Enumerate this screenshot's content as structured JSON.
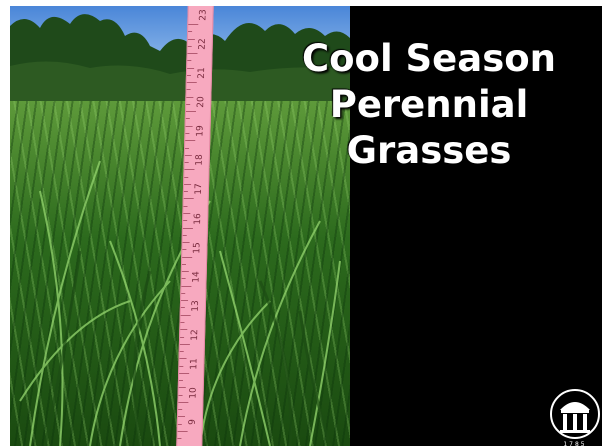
{
  "slide": {
    "title_lines": [
      "Cool Season",
      "Perennial",
      "Grasses"
    ],
    "background_color": "#000000",
    "title_color": "#ffffff"
  },
  "photo": {
    "ruler_numbers": [
      "9",
      "10",
      "11",
      "12",
      "13",
      "14",
      "15",
      "16",
      "17",
      "18",
      "19",
      "20",
      "21",
      "22",
      "23"
    ],
    "ruler_color": "#f7a9bf"
  },
  "logo": {
    "icon": "arch-icon",
    "year_text": "1785"
  }
}
